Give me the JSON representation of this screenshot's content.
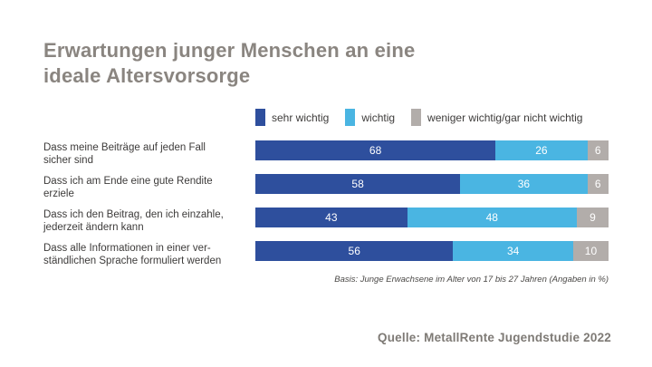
{
  "title": {
    "line1": "Erwartungen junger Menschen an eine",
    "line2": "ideale Altersvorsorge"
  },
  "colors": {
    "sehr_wichtig": "#2e4f9d",
    "wichtig": "#4ab5e2",
    "weniger_wichtig": "#b2adaa",
    "title_text": "#8a8580",
    "label_text": "#3d3b3a",
    "value_text": "#ffffff"
  },
  "chart_data": {
    "type": "bar",
    "orientation": "horizontal",
    "stacked": true,
    "unit": "%",
    "xlim": [
      0,
      100
    ],
    "grid": false,
    "legend_position": "top",
    "value_labels": "inside-white",
    "categories": [
      "Dass meine Beiträge auf jeden Fall sicher sind",
      "Dass ich am Ende eine gute Rendite erziele",
      "Dass ich den Beitrag, den ich einzahle, jederzeit ändern kann",
      "Dass alle Informationen in einer verständlichen Sprache formuliert werden"
    ],
    "category_wrap": [
      [
        "Dass meine Beiträge auf jeden Fall",
        "sicher sind"
      ],
      [
        "Dass ich am Ende eine gute Rendite",
        "erziele"
      ],
      [
        "Dass ich den Beitrag, den ich einzahle,",
        "jederzeit ändern kann"
      ],
      [
        "Dass alle Informationen in einer ver-",
        "ständlichen Sprache formuliert werden"
      ]
    ],
    "series": [
      {
        "name": "sehr wichtig",
        "color": "#2e4f9d",
        "values": [
          68,
          58,
          43,
          56
        ]
      },
      {
        "name": "wichtig",
        "color": "#4ab5e2",
        "values": [
          26,
          36,
          48,
          34
        ]
      },
      {
        "name": "weniger wichtig/gar nicht wichtig",
        "color": "#b2adaa",
        "values": [
          6,
          6,
          9,
          10
        ]
      }
    ]
  },
  "footnote": "Basis: Junge Erwachsene im Alter von 17 bis 27 Jahren (Angaben in %)",
  "source": "Quelle: MetallRente Jugendstudie 2022"
}
